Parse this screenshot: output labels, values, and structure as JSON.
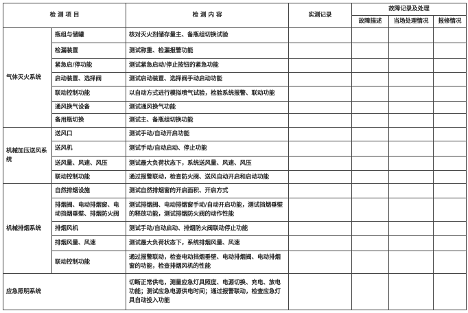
{
  "header": {
    "item": "检 测 项 目",
    "content": "检 测 内 容",
    "record": "实测记录",
    "fault_group": "故障记录及处理",
    "fault_desc": "故障描述",
    "onsite": "当场处理情况",
    "repair": "报修情况"
  },
  "groups": [
    {
      "system": "气体灭火系统",
      "rows": [
        {
          "item": "瓶组与储罐",
          "content": "核对灭火剂储存量主、备瓶组切换试验"
        },
        {
          "item": "检漏装置",
          "content": "测试称重、检漏报警功能"
        },
        {
          "item": "紧急启/停功能",
          "content": "测试紧急启动/停止按钮的紧急功能"
        },
        {
          "item": "启动装置、选择阀",
          "content": "测试启动装置、选择阀手动启动功能"
        },
        {
          "item": "联动控制功能",
          "content": "以自动方式进行模拟喷气试验，检验系统报警、联动功能"
        },
        {
          "item": "通风换气设备",
          "content": "测试通风换气功能"
        },
        {
          "item": "备用瓶切换",
          "content": "测试主、备瓶组切换功能"
        }
      ]
    },
    {
      "system": "机械加压送风系统",
      "rows": [
        {
          "item": "送风口",
          "content": "测试手动/自动开启功能"
        },
        {
          "item": "送风机",
          "content": "测试手动/自动启动、停止功能"
        },
        {
          "item": "送风量、风速、风压",
          "content": "测试最大负荷状态下，系统送风量、风速、风压"
        },
        {
          "item": "联动控制功能",
          "content": "通过报警联动，检查防火阀、送风自动开启和启动功能"
        }
      ]
    },
    {
      "system": "机械排烟系统",
      "rows": [
        {
          "item": "自然排烟设施",
          "content": "测试自然排烟窗的开启面积、开启方式"
        },
        {
          "item": "排烟阀、电动排烟窗、电动挡烟垂壁、排烟防火阀",
          "content": "测试排烟阀、电动排烟窗手动/自动开启功能，测试挡烟垂壁的释放功能，测试排烟防火阀的动作性能"
        },
        {
          "item": "排烟风机",
          "content": "测试手动/自动启动、排烟防火阀联动停止功能"
        },
        {
          "item": "排烟风量、风速",
          "content": "测试最大负荷状态下，系统排烟风量、风速"
        },
        {
          "item": "联动控制功能",
          "content": "通过报警联动，检查电动挡烟垂壁、电动排烟阀、电动排烟窗的功能，检查排烟风机的性能"
        }
      ]
    },
    {
      "system": "应急照明系统",
      "content": "切断正常供电，测量应急灯具照度、电源切换、充电、放电功能；测试应急电源供电时间；通过报警联动，检查应急灯具自动投入功能"
    }
  ]
}
